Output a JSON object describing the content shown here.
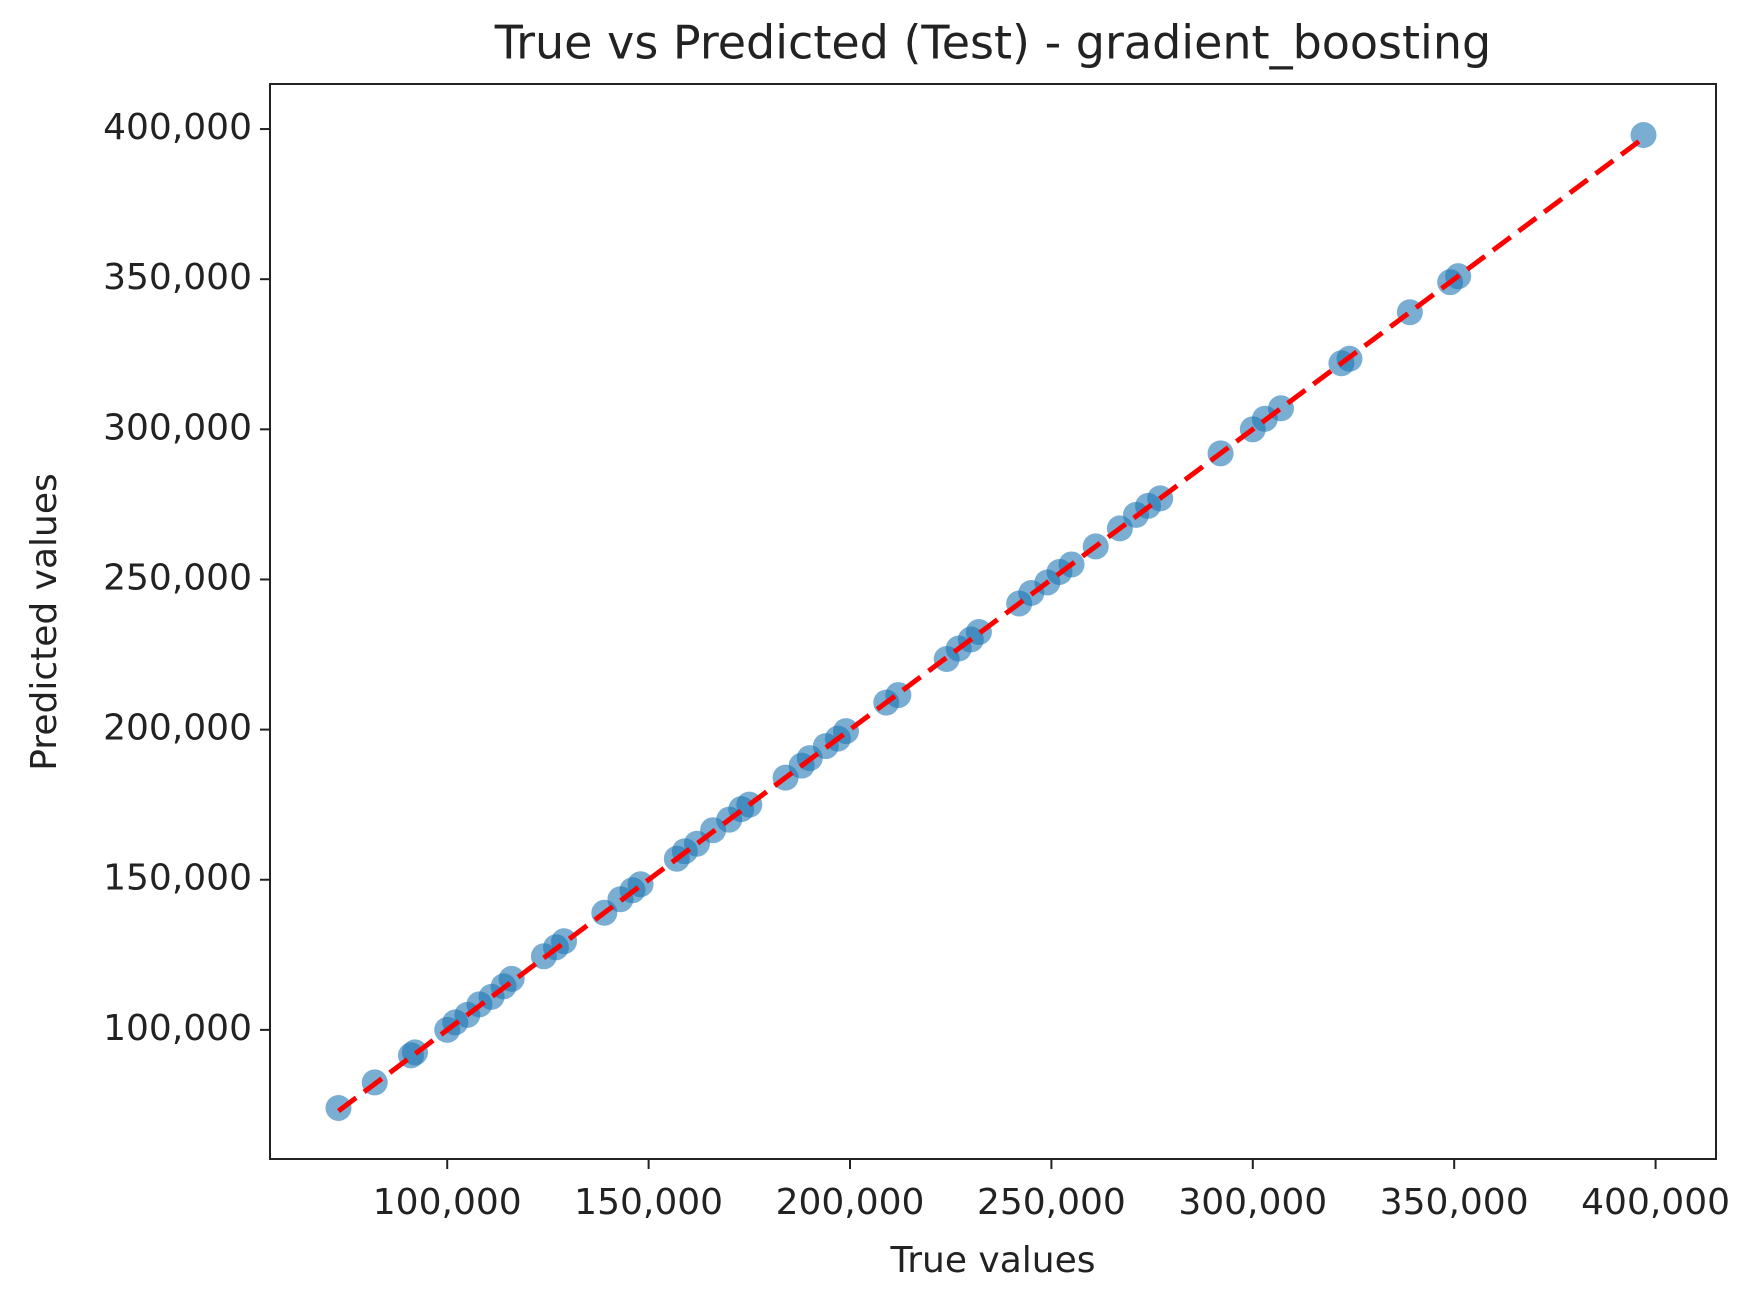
{
  "chart_data": {
    "type": "scatter",
    "title": "True vs Predicted (Test) - gradient_boosting",
    "x_label": "True values",
    "y_label": "Predicted values",
    "color": "#1f77b4",
    "x": [
      73000,
      82000,
      91000,
      92000,
      100000,
      102000,
      105000,
      108000,
      111000,
      114000,
      116000,
      124000,
      127000,
      129000,
      139000,
      143000,
      146000,
      148000,
      157000,
      159000,
      162000,
      166000,
      170000,
      173000,
      175000,
      184000,
      188000,
      190000,
      194000,
      197000,
      199000,
      209000,
      212000,
      224000,
      227000,
      230000,
      232000,
      242000,
      245000,
      249000,
      252000,
      255000,
      261000,
      267000,
      271000,
      274000,
      277000,
      292000,
      300000,
      303000,
      307000,
      322000,
      324000,
      339000,
      349000,
      351000,
      397000
    ],
    "values": [
      74000,
      82500,
      91500,
      92500,
      100000,
      102500,
      105000,
      108500,
      111000,
      114500,
      117000,
      124500,
      127500,
      129500,
      139000,
      143500,
      146500,
      148500,
      157000,
      159500,
      162000,
      166500,
      170000,
      173500,
      175000,
      184000,
      188000,
      190500,
      194500,
      197000,
      199500,
      209000,
      211500,
      223500,
      227000,
      230000,
      232500,
      242000,
      245500,
      249000,
      252500,
      255000,
      261000,
      267000,
      271500,
      274500,
      277000,
      292000,
      300000,
      303500,
      307000,
      322000,
      323500,
      339000,
      349000,
      351000,
      398000
    ],
    "reference_line": {
      "color": "#ff0000",
      "x": [
        73000,
        397000
      ],
      "values": [
        73000,
        397000
      ]
    },
    "xlim": [
      56000,
      415000
    ],
    "ylim": [
      57000,
      415000
    ],
    "xticks": [
      {
        "value": 100000,
        "label": "100,000"
      },
      {
        "value": 150000,
        "label": "150,000"
      },
      {
        "value": 200000,
        "label": "200,000"
      },
      {
        "value": 250000,
        "label": "250,000"
      },
      {
        "value": 300000,
        "label": "300,000"
      },
      {
        "value": 350000,
        "label": "350,000"
      },
      {
        "value": 400000,
        "label": "400,000"
      }
    ],
    "yticks": [
      {
        "value": 100000,
        "label": "100,000"
      },
      {
        "value": 150000,
        "label": "150,000"
      },
      {
        "value": 200000,
        "label": "200,000"
      },
      {
        "value": 250000,
        "label": "250,000"
      },
      {
        "value": 300000,
        "label": "300,000"
      },
      {
        "value": 350000,
        "label": "350,000"
      },
      {
        "value": 400000,
        "label": "400,000"
      }
    ],
    "grid": false
  }
}
